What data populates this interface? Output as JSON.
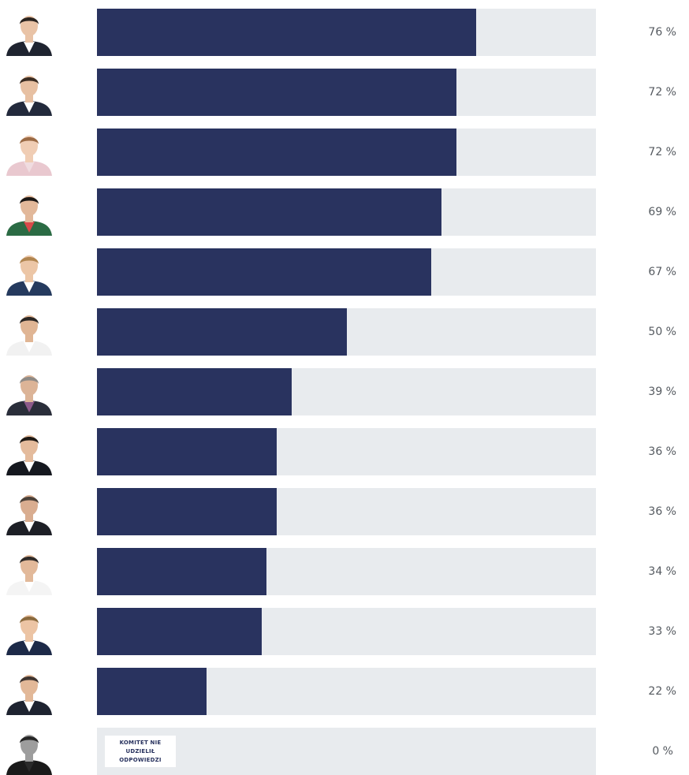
{
  "colors": {
    "bar": "#29335f",
    "track": "#e8ebee",
    "label": "#555a60"
  },
  "chart_data": {
    "type": "bar",
    "orientation": "horizontal",
    "xlim": [
      0,
      100
    ],
    "grid": false,
    "legend": "none",
    "rows": [
      {
        "value": 76,
        "label": "76 %",
        "avatar_icon": "portrait-icon",
        "suit": "#1f2430",
        "shirt": "#ffffff",
        "hair": "#2b2420",
        "skin": "#e9c3a6"
      },
      {
        "value": 72,
        "label": "72 %",
        "avatar_icon": "portrait-icon",
        "suit": "#232a3c",
        "shirt": "#ffffff",
        "hair": "#3a2c22",
        "skin": "#e7c0a2"
      },
      {
        "value": 72,
        "label": "72 %",
        "avatar_icon": "portrait-icon",
        "suit": "#e9c8cf",
        "shirt": "#f0dce0",
        "hair": "#9a6a45",
        "skin": "#f0cdb4"
      },
      {
        "value": 69,
        "label": "69 %",
        "avatar_icon": "portrait-icon",
        "suit": "#2b6b44",
        "shirt": "#d84a4a",
        "hair": "#1a1614",
        "skin": "#e2b89a"
      },
      {
        "value": 67,
        "label": "67 %",
        "avatar_icon": "portrait-icon",
        "suit": "#253a5e",
        "shirt": "#ffffff",
        "hair": "#b08550",
        "skin": "#ecc6a6"
      },
      {
        "value": 50,
        "label": "50 %",
        "avatar_icon": "portrait-icon",
        "suit": "#f1f1f1",
        "shirt": "#ffffff",
        "hair": "#2a2624",
        "skin": "#e0b594"
      },
      {
        "value": 39,
        "label": "39 %",
        "avatar_icon": "portrait-icon",
        "suit": "#2a2e3a",
        "shirt": "#8c5a8a",
        "hair": "#8e8a86",
        "skin": "#dcb497"
      },
      {
        "value": 36,
        "label": "36 %",
        "avatar_icon": "portrait-icon",
        "suit": "#15181f",
        "shirt": "#ffffff",
        "hair": "#1d1814",
        "skin": "#e4bb9c"
      },
      {
        "value": 36,
        "label": "36 %",
        "avatar_icon": "portrait-icon",
        "suit": "#1d1f26",
        "shirt": "#ffffff",
        "hair": "#4a4038",
        "skin": "#d9ad90"
      },
      {
        "value": 34,
        "label": "34 %",
        "avatar_icon": "portrait-icon",
        "suit": "#f4f4f4",
        "shirt": "#ffffff",
        "hair": "#2e2a28",
        "skin": "#e2b99a"
      },
      {
        "value": 33,
        "label": "33 %",
        "avatar_icon": "portrait-icon",
        "suit": "#1d2a48",
        "shirt": "#ffffff",
        "hair": "#8a6a3e",
        "skin": "#ecc4a4"
      },
      {
        "value": 22,
        "label": "22 %",
        "avatar_icon": "portrait-icon",
        "suit": "#1e2330",
        "shirt": "#ffffff",
        "hair": "#3e3430",
        "skin": "#e2b898"
      },
      {
        "value": 0,
        "label": "0 %",
        "avatar_icon": "portrait-icon",
        "suit": "#1a1a1a",
        "shirt": "#2a2a2a",
        "hair": "#2a2522",
        "skin": "#9d9d9d",
        "grayscale": true,
        "note": "KOMITET NIE UDZIELIŁ ODPOWIEDZI"
      }
    ]
  }
}
